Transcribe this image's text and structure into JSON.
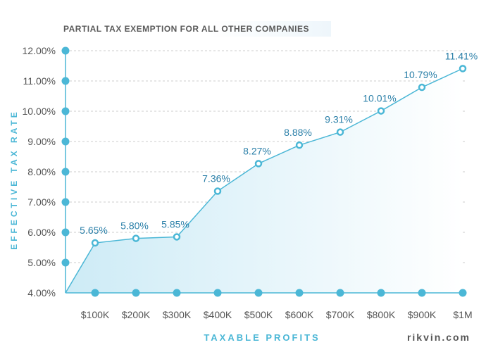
{
  "chart_data": {
    "type": "area",
    "title": "PARTIAL TAX EXEMPTION FOR ALL OTHER COMPANIES",
    "xlabel": "TAXABLE PROFITS",
    "ylabel": "EFFECTIVE TAX RATE",
    "categories": [
      "$100K",
      "$200K",
      "$300K",
      "$400K",
      "$500K",
      "$600K",
      "$700K",
      "$800K",
      "$900K",
      "$1M"
    ],
    "values": [
      5.65,
      5.8,
      5.85,
      7.36,
      8.27,
      8.88,
      9.31,
      10.01,
      10.79,
      11.41
    ],
    "data_labels": [
      "5.65%",
      "5.80%",
      "5.85%",
      "7.36%",
      "8.27%",
      "8.88%",
      "9.31%",
      "10.01%",
      "10.79%",
      "11.41%"
    ],
    "origin_value": 4.0,
    "ylim": [
      4,
      12
    ],
    "yticks": [
      4,
      5,
      6,
      7,
      8,
      9,
      10,
      11,
      12
    ],
    "ytick_labels": [
      "4.00%",
      "5.00%",
      "6.00%",
      "7.00%",
      "8.00%",
      "9.00%",
      "10.00%",
      "11.00%",
      "12.00%"
    ],
    "grid": true,
    "colors": {
      "line": "#4bb7d6",
      "marker": "#4bb7d6",
      "axis_dot": "#4bb7d6",
      "area_fill": "#dff3fa",
      "data_label": "#2a7fa8",
      "tick_label": "#555555",
      "grid": "#cccccc"
    }
  },
  "credit": "rikvin.com"
}
